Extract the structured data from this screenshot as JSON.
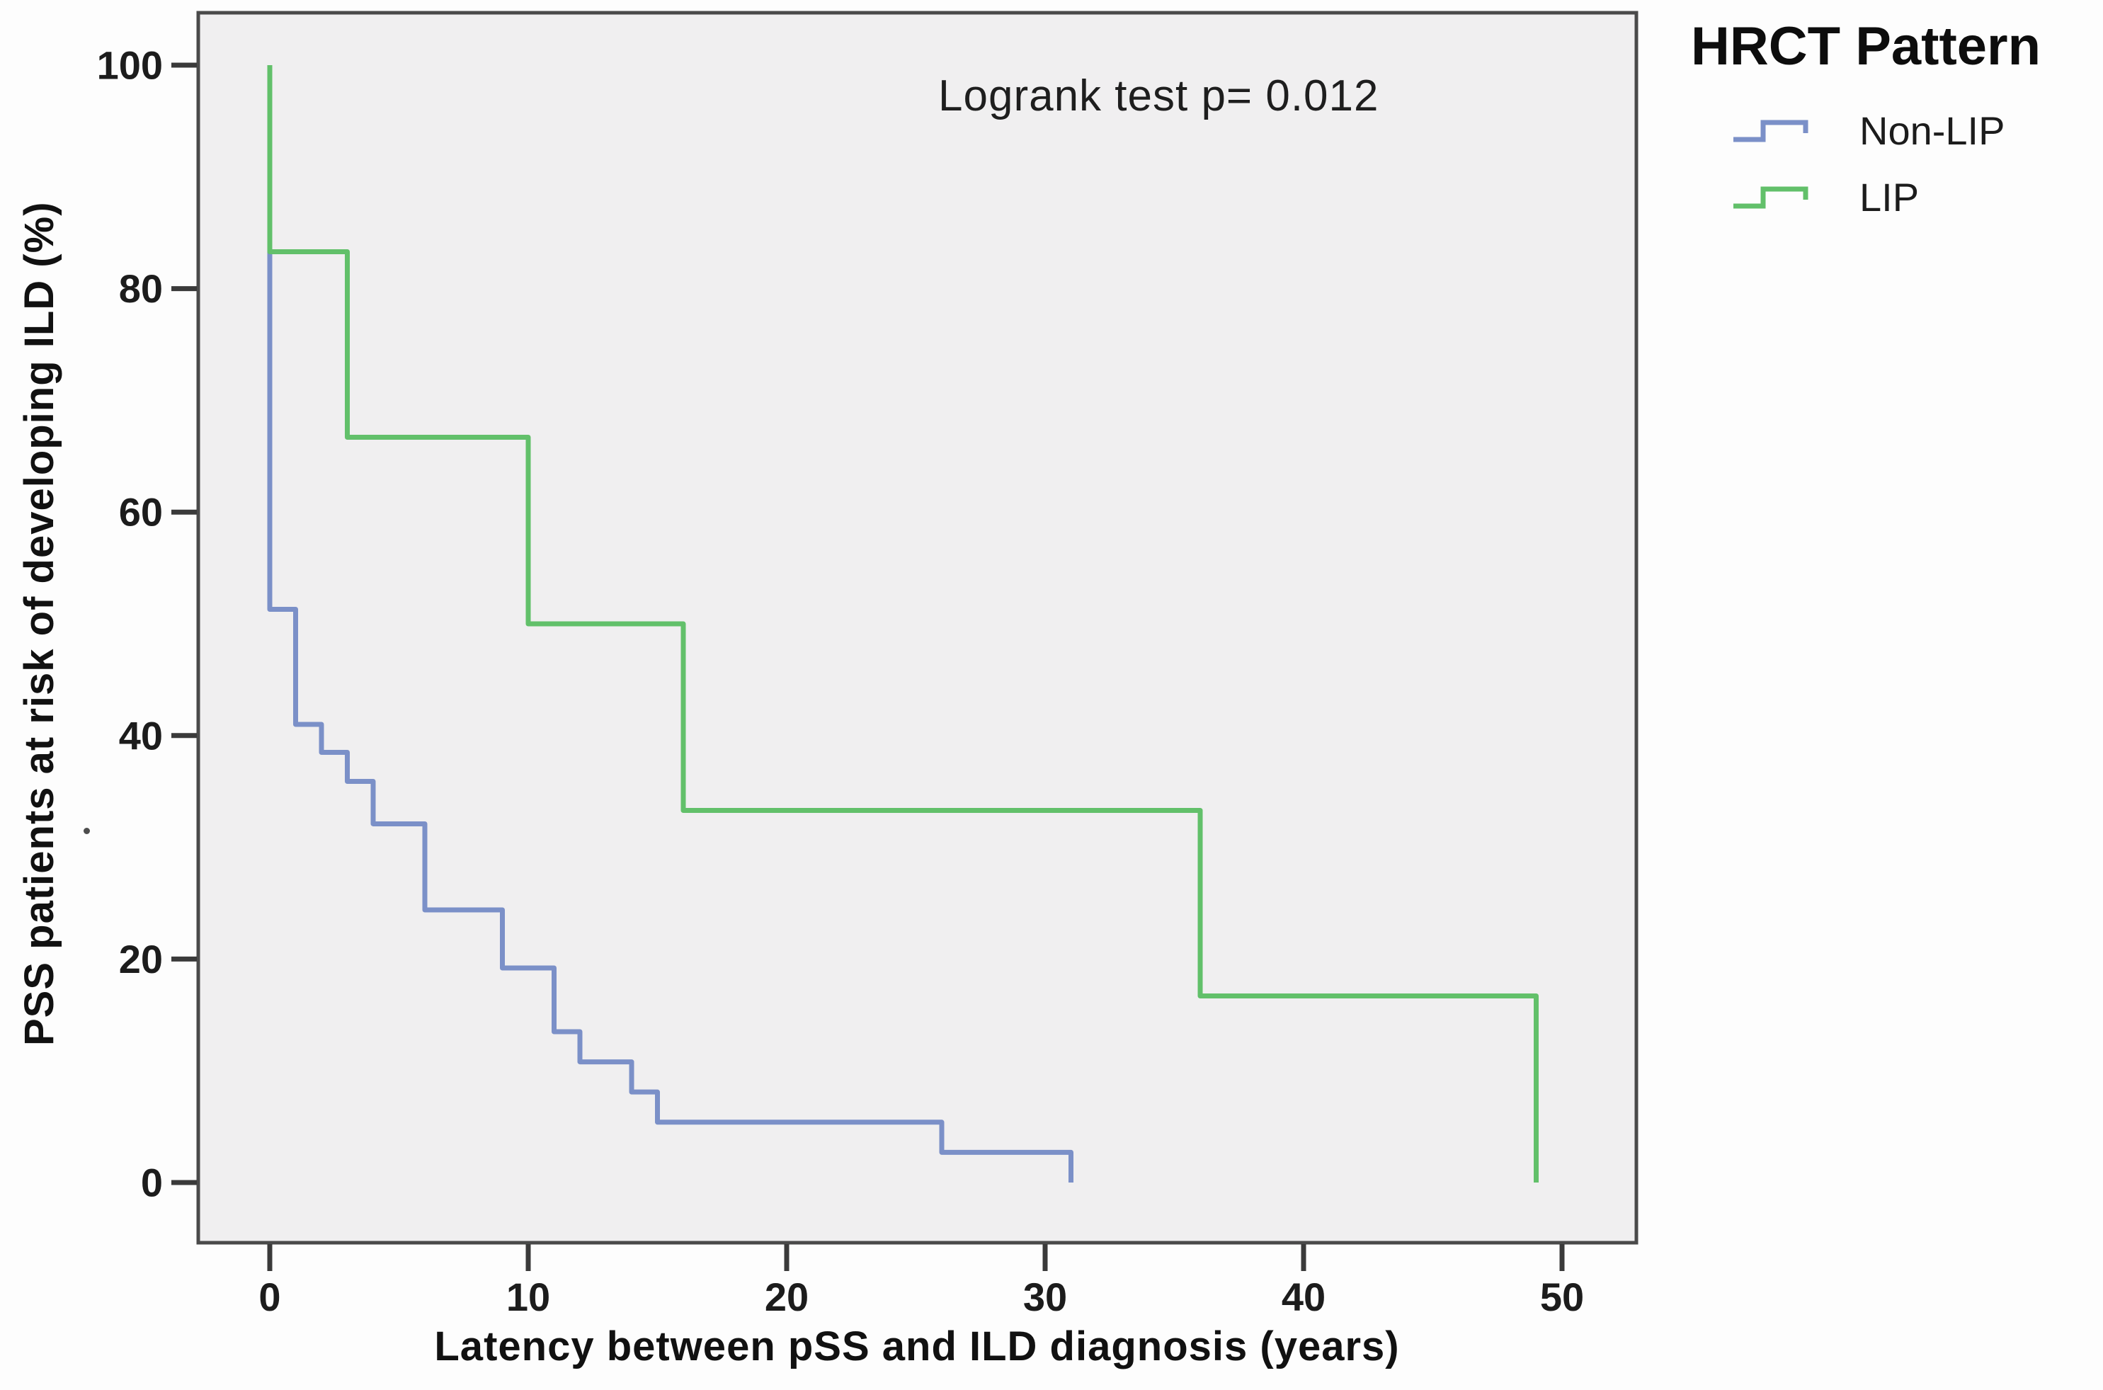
{
  "figure": {
    "legend": {
      "title": "HRCT Pattern"
    }
  },
  "chart_data": {
    "type": "line",
    "subtype": "kaplan_meier_step",
    "title": "",
    "xlabel": "Latency between pSS and ILD diagnosis (years)",
    "ylabel": "PSS patients at risk of developing ILD (%)",
    "xlim": [
      -2.8,
      52.9
    ],
    "ylim": [
      -5.4,
      104.7
    ],
    "x_ticks": [
      0,
      10,
      20,
      30,
      40,
      50
    ],
    "y_ticks": [
      0,
      20,
      40,
      60,
      80,
      100
    ],
    "grid": false,
    "legend_position": "outside-top-right",
    "legend_title": "HRCT Pattern",
    "annotation": {
      "text": "Logrank test p= 0.012",
      "x_years": 26,
      "y_percent": 97
    },
    "background_color": "#f0eff0",
    "series": [
      {
        "name": "Non-LIP",
        "color": "#7b90c8",
        "start": [
          0,
          100
        ],
        "steps": [
          [
            0,
            51.3
          ],
          [
            1,
            41.0
          ],
          [
            2,
            38.5
          ],
          [
            3,
            35.9
          ],
          [
            4,
            32.1
          ],
          [
            6,
            24.4
          ],
          [
            9,
            19.2
          ],
          [
            11,
            13.5
          ],
          [
            12,
            10.8
          ],
          [
            14,
            8.1
          ],
          [
            15,
            5.4
          ],
          [
            26,
            2.7
          ],
          [
            31,
            0
          ]
        ]
      },
      {
        "name": "LIP",
        "color": "#62c06a",
        "start": [
          0,
          100
        ],
        "steps": [
          [
            0,
            83.3
          ],
          [
            3,
            66.7
          ],
          [
            10,
            50.0
          ],
          [
            16,
            33.3
          ],
          [
            36,
            16.7
          ],
          [
            49,
            0
          ]
        ]
      }
    ]
  }
}
